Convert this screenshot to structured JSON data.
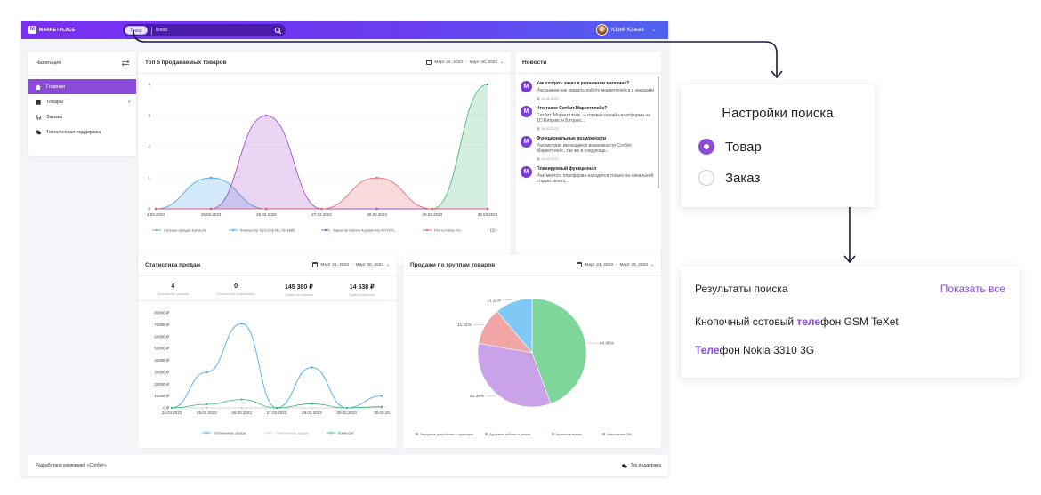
{
  "topbar": {
    "logo_text": "MARKETPLACE",
    "logo_mark": "M",
    "search_chip": "Товар",
    "search_placeholder": "Поиск",
    "user_name": "Юрий Юрьев"
  },
  "sidebar": {
    "title": "Навигация",
    "items": [
      {
        "label": "Главная",
        "icon": "home-icon",
        "active": true
      },
      {
        "label": "Товары",
        "icon": "box-icon",
        "has_arrow": true
      },
      {
        "label": "Заказы",
        "icon": "cart-icon"
      },
      {
        "label": "Техническая поддержка",
        "icon": "chat-icon"
      }
    ]
  },
  "top5": {
    "title": "Топ 5 продаваемых товаров",
    "date_from": "Март 24, 2023",
    "date_sep": "-",
    "date_to": "Март 30, 2023",
    "legend_pager": "1/2"
  },
  "news": {
    "title": "Новости",
    "items": [
      {
        "title": "Как создать заказ в розничном магазине?",
        "body": "Расскажем как увидеть работу маркетплейса с заказами",
        "date": "16.02.2023"
      },
      {
        "title": "Что такое Сотбит.Маркетплейс?",
        "body": "Сотбит. Маркетплейс — готовая онлайн-платформа на 1С-Битрикс и Битрикс...",
        "date": "16.02.2023"
      },
      {
        "title": "Функциональные возможности",
        "body": "Рассмотрим имеющиеся возможности Сотбит. Маркетплейс, так же в следующе...",
        "date": "16.02.2023"
      },
      {
        "title": "Планируемый функционал",
        "body": "Разумеется, платформа находится только на начальной стадии своего...",
        "date": ""
      }
    ]
  },
  "sales": {
    "title": "Статистика продаж",
    "date_from": "Март 24, 2023",
    "date_sep": "-",
    "date_to": "Март 30, 2023",
    "stats": [
      {
        "value": "4",
        "label": "Количество заказов"
      },
      {
        "value": "0",
        "label": "Количество отмененных"
      },
      {
        "value": "145 380 ₽",
        "label": "Сумма по заказам"
      },
      {
        "value": "14 538 ₽",
        "label": "Сумма комиссии"
      }
    ]
  },
  "groups": {
    "title": "Продажи по группам товаров",
    "date_from": "Март 24, 2023",
    "date_sep": "-",
    "date_to": "Март 30, 2023"
  },
  "footer": {
    "left": "Разработано компанией «Сотбит»",
    "right": "Тех.поддержка"
  },
  "search_settings": {
    "title": "Настройки поиска",
    "options": [
      {
        "label": "Товар",
        "selected": true
      },
      {
        "label": "Заказ",
        "selected": false
      }
    ]
  },
  "search_results": {
    "title": "Результаты поиска",
    "show_all": "Показать все",
    "items": [
      {
        "before": "Кнопочный сотовый ",
        "match": "теле",
        "after": "фон GSM TeXet"
      },
      {
        "before": "",
        "match": "Теле",
        "after": "фон Nokia 3310 3G"
      }
    ]
  },
  "colors": {
    "accent": "#8a4bd8",
    "topbar_start": "#7b2ff0",
    "topbar_end": "#4f63f0"
  },
  "chart_data": [
    {
      "type": "area",
      "title": "Топ 5 продаваемых товаров",
      "categories": [
        "24.03.2023",
        "25.03.2023",
        "26.03.2023",
        "27.03.2023",
        "28.03.2023",
        "29.03.2023",
        "30.03.2023"
      ],
      "x_tick_labels": [
        "4.03.2023",
        "25.03.2023",
        "26.03.2023",
        "27.03.2023",
        "28.03.2023",
        "29.03.2023",
        "30.03.2023"
      ],
      "ylim": [
        0,
        4
      ],
      "y_ticks": [
        "0",
        "1",
        "2",
        "3",
        "4"
      ],
      "series": [
        {
          "name": "Сетевая зарядка Samsung",
          "color": "#3cb371",
          "values": [
            0,
            0,
            0,
            0,
            0,
            0,
            4
          ]
        },
        {
          "name": "Компьютер TopComp MC 2619686",
          "color": "#3aa0e8",
          "values": [
            0,
            1,
            0,
            0,
            0,
            0,
            0
          ]
        },
        {
          "name": "Закрытая кабина Aquatek AQ-4072DFL",
          "color": "#a040c8",
          "values": [
            0,
            0,
            3,
            0,
            0,
            0,
            0
          ]
        },
        {
          "name": "Плита Kaiser HC",
          "color": "#e85a64",
          "values": [
            0,
            0,
            0,
            0,
            1,
            0,
            0
          ]
        }
      ],
      "legend": "bottom"
    },
    {
      "type": "line",
      "title": "Статистика продаж",
      "categories": [
        "24.03.2023",
        "25.03.2023",
        "26.03.2023",
        "27.03.2023",
        "28.03.2023",
        "29.03.2023",
        "30.03.20"
      ],
      "ylim": [
        0,
        80000
      ],
      "y_ticks": [
        "0 ₽",
        "10000 ₽",
        "20000 ₽",
        "30000 ₽",
        "40000 ₽",
        "50000 ₽",
        "60000 ₽",
        "70000 ₽",
        "80000 ₽"
      ],
      "series": [
        {
          "name": "Оплаченные заказы",
          "color": "#3aa0e8",
          "values": [
            0,
            30000,
            71000,
            0,
            34000,
            0,
            10000
          ]
        },
        {
          "name": "Отмененные заказы",
          "color": "#cfcfcf",
          "values": [
            0,
            0,
            0,
            0,
            0,
            0,
            0
          ]
        },
        {
          "name": "Комиссия",
          "color": "#3cb371",
          "values": [
            0,
            3000,
            7000,
            0,
            3400,
            0,
            1000
          ]
        }
      ],
      "legend": "bottom"
    },
    {
      "type": "pie",
      "title": "Продажи по группам товаров",
      "labels": [
        "Зарядные устройства и адаптеры",
        "Душевые кабины и уголки",
        "Кухонные плиты",
        "Настольные ПК"
      ],
      "values": [
        44.45,
        33.33,
        11.11,
        11.11
      ],
      "value_labels": [
        "44.45%",
        "33.33%",
        "11.11%",
        "11.11%"
      ],
      "colors": [
        "#7ed69a",
        "#c9a2e8",
        "#f2a5a5",
        "#7fc9f6"
      ],
      "legend": "bottom"
    }
  ]
}
